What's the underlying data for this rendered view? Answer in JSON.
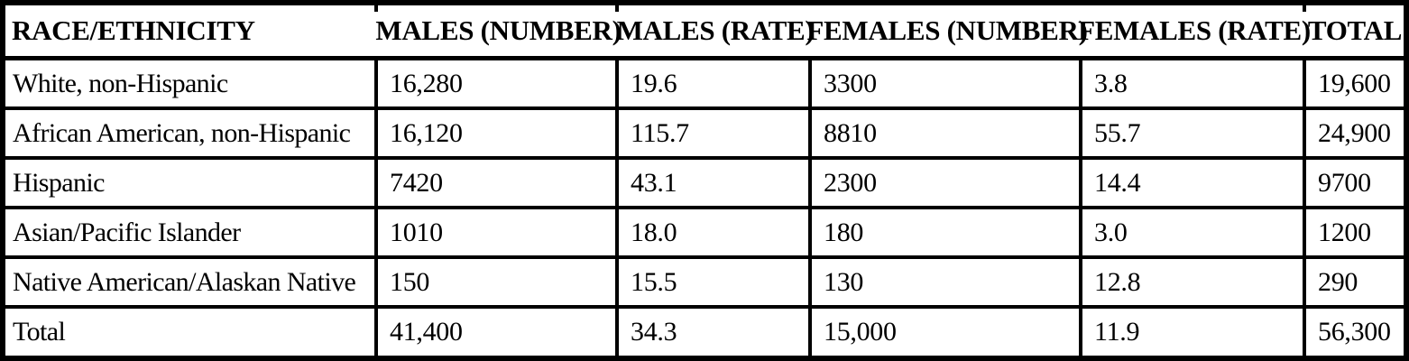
{
  "table": {
    "columns": [
      "RACE/ETHNICITY",
      "MALES (NUMBER)",
      "MALES (RATE)",
      "FEMALES (NUMBER)",
      "FEMALES (RATE)",
      "TOTAL"
    ],
    "column_keys": [
      "race-ethnicity",
      "males-number",
      "males-rate",
      "females-number",
      "females-rate",
      "total"
    ],
    "rows": [
      [
        "White, non-Hispanic",
        "16,280",
        "19.6",
        "3300",
        "3.8",
        "19,600"
      ],
      [
        "African American, non-Hispanic",
        "16,120",
        "115.7",
        "8810",
        "55.7",
        "24,900"
      ],
      [
        "Hispanic",
        "7420",
        "43.1",
        "2300",
        "14.4",
        "9700"
      ],
      [
        "Asian/Pacific Islander",
        "1010",
        "18.0",
        "180",
        "3.0",
        "1200"
      ],
      [
        "Native American/Alaskan Native",
        "150",
        "15.5",
        "130",
        "12.8",
        "290"
      ],
      [
        "Total",
        "41,400",
        "34.3",
        "15,000",
        "11.9",
        "56,300"
      ]
    ],
    "colors": {
      "border": "#000000",
      "background": "#ffffff",
      "text": "#000000"
    }
  }
}
